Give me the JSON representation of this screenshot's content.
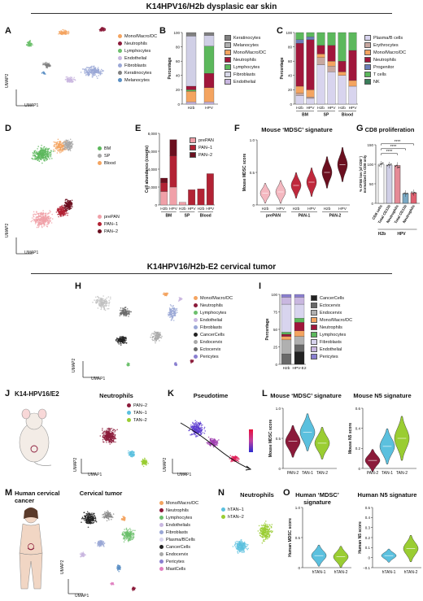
{
  "section1_title": "K14HPV16/H2b dysplasic ear skin",
  "section2_title": "K14HPV16/H2b-E2 cervical tumor",
  "panels": {
    "A": {
      "label": "A",
      "x_axis": "UMAP1",
      "y_axis": "UMAP2",
      "legend": [
        {
          "name": "Mono/Macro/DC",
          "color": "#f4a460"
        },
        {
          "name": "Neutrophils",
          "color": "#8b1a3a"
        },
        {
          "name": "Lymphocytes",
          "color": "#6cbf6c"
        },
        {
          "name": "Endothelial",
          "color": "#c9b7e0"
        },
        {
          "name": "Fibroblasts",
          "color": "#9aa7d6"
        },
        {
          "name": "Keratinocytes",
          "color": "#808080"
        },
        {
          "name": "Melanocytes",
          "color": "#5a8fc4"
        }
      ]
    },
    "B": {
      "label": "B",
      "ylabel": "Percentage",
      "yticks": [
        "0",
        "20",
        "40",
        "60",
        "80",
        "100"
      ],
      "legend": [
        {
          "name": "Keratinocytes",
          "color": "#808080"
        },
        {
          "name": "Melanocytes",
          "color": "#b0b0b0"
        },
        {
          "name": "Mono/Macro/DC",
          "color": "#f4a460"
        },
        {
          "name": "Neutrophils",
          "color": "#a0163b"
        },
        {
          "name": "Lymphocytes",
          "color": "#5cb85c"
        },
        {
          "name": "Fibroblasts",
          "color": "#d8d8e8"
        },
        {
          "name": "Endothelial",
          "color": "#c9b7e0"
        }
      ],
      "categories": [
        "H2b",
        "HPV"
      ],
      "stacks": [
        [
          {
            "v": 3,
            "c": "#c9b7e0"
          },
          {
            "v": 15,
            "c": "#f4a460"
          },
          {
            "v": 2,
            "c": "#5cb85c"
          },
          {
            "v": 5,
            "c": "#a0163b"
          },
          {
            "v": 70,
            "c": "#d0cfe6"
          },
          {
            "v": 5,
            "c": "#808080"
          }
        ],
        [
          {
            "v": 3,
            "c": "#c9b7e0"
          },
          {
            "v": 20,
            "c": "#f4a460"
          },
          {
            "v": 20,
            "c": "#a0163b"
          },
          {
            "v": 38,
            "c": "#5cb85c"
          },
          {
            "v": 15,
            "c": "#d0cfe6"
          },
          {
            "v": 4,
            "c": "#808080"
          }
        ]
      ]
    },
    "C": {
      "label": "C",
      "ylabel": "Percentage",
      "yticks": [
        "0",
        "20",
        "40",
        "60",
        "80",
        "100"
      ],
      "legend": [
        {
          "name": "Plasma/B cells",
          "color": "#d8d4ee"
        },
        {
          "name": "Erythrocytes",
          "color": "#c8a8a0"
        },
        {
          "name": "Mono/Macro/DC",
          "color": "#f4a460"
        },
        {
          "name": "Neutrophils",
          "color": "#a0163b"
        },
        {
          "name": "Progenitor",
          "color": "#6b7fb8"
        },
        {
          "name": "T cells",
          "color": "#5cb85c"
        },
        {
          "name": "NK",
          "color": "#3a7d5a"
        }
      ],
      "categories": [
        "H2b",
        "HPV",
        "H2b",
        "HPV",
        "H2b",
        "HPV"
      ],
      "groups": [
        "BM",
        "SP",
        "Blood"
      ],
      "stacks": [
        [
          {
            "v": 12,
            "c": "#d8d4ee"
          },
          {
            "v": 3,
            "c": "#c8a8a0"
          },
          {
            "v": 10,
            "c": "#f4a460"
          },
          {
            "v": 60,
            "c": "#a0163b"
          },
          {
            "v": 5,
            "c": "#6b7fb8"
          },
          {
            "v": 10,
            "c": "#5cb85c"
          }
        ],
        [
          {
            "v": 8,
            "c": "#d8d4ee"
          },
          {
            "v": 2,
            "c": "#c8a8a0"
          },
          {
            "v": 10,
            "c": "#f4a460"
          },
          {
            "v": 70,
            "c": "#a0163b"
          },
          {
            "v": 4,
            "c": "#6b7fb8"
          },
          {
            "v": 6,
            "c": "#5cb85c"
          }
        ],
        [
          {
            "v": 55,
            "c": "#d8d4ee"
          },
          {
            "v": 10,
            "c": "#c8a8a0"
          },
          {
            "v": 5,
            "c": "#f4a460"
          },
          {
            "v": 12,
            "c": "#a0163b"
          },
          {
            "v": 18,
            "c": "#5cb85c"
          }
        ],
        [
          {
            "v": 45,
            "c": "#d8d4ee"
          },
          {
            "v": 8,
            "c": "#c8a8a0"
          },
          {
            "v": 7,
            "c": "#f4a460"
          },
          {
            "v": 22,
            "c": "#a0163b"
          },
          {
            "v": 18,
            "c": "#5cb85c"
          }
        ],
        [
          {
            "v": 40,
            "c": "#d8d4ee"
          },
          {
            "v": 5,
            "c": "#f4a460"
          },
          {
            "v": 15,
            "c": "#a0163b"
          },
          {
            "v": 40,
            "c": "#5cb85c"
          }
        ],
        [
          {
            "v": 25,
            "c": "#d8d4ee"
          },
          {
            "v": 8,
            "c": "#f4a460"
          },
          {
            "v": 42,
            "c": "#a0163b"
          },
          {
            "v": 25,
            "c": "#5cb85c"
          }
        ]
      ]
    },
    "D": {
      "label": "D",
      "x_axis": "UMAP1",
      "y_axis": "UMAP2",
      "legend_top": [
        {
          "name": "BM",
          "color": "#5cb85c"
        },
        {
          "name": "SP",
          "color": "#a6a6a6"
        },
        {
          "name": "Blood",
          "color": "#f4a460"
        }
      ],
      "legend_bottom": [
        {
          "name": "prePAN",
          "color": "#f0a0a8"
        },
        {
          "name": "PAN–1",
          "color": "#b22234"
        },
        {
          "name": "PAN–2",
          "color": "#6b0f1f"
        }
      ]
    },
    "E": {
      "label": "E",
      "ylabel": "Cell abundance (counts)",
      "yticks": [
        "0",
        "2,000",
        "4,000",
        "6,000",
        "8,000"
      ],
      "legend": [
        {
          "name": "prePAN",
          "color": "#f0a0a8"
        },
        {
          "name": "PAN–1",
          "color": "#b22234"
        },
        {
          "name": "PAN–2",
          "color": "#6b0f1f"
        }
      ],
      "categories": [
        "H2b",
        "HPV",
        "H2b",
        "HPV",
        "H2b",
        "HPV"
      ],
      "groups": [
        "BM",
        "SP",
        "Blood"
      ],
      "stacks": [
        [
          {
            "v": 1500,
            "c": "#f0a0a8"
          },
          {
            "v": 1000,
            "c": "#b22234"
          },
          {
            "v": 500,
            "c": "#6b0f1f"
          }
        ],
        [
          {
            "v": 2000,
            "c": "#f0a0a8"
          },
          {
            "v": 3500,
            "c": "#b22234"
          },
          {
            "v": 1800,
            "c": "#6b0f1f"
          }
        ],
        [
          {
            "v": 300,
            "c": "#f0a0a8"
          }
        ],
        [
          {
            "v": 1700,
            "c": "#b22234"
          }
        ],
        [
          {
            "v": 1800,
            "c": "#b22234"
          }
        ],
        [
          {
            "v": 3500,
            "c": "#b22234"
          }
        ]
      ]
    },
    "F": {
      "label": "F",
      "title": "Mouse ‘MDSC’ signature",
      "ylabel": "Mouse MDSC score",
      "yticks": [
        "0",
        "0.5",
        "1.0"
      ],
      "categories": [
        "H2b",
        "HPV",
        "H2b",
        "HPV",
        "H2b",
        "HPV"
      ],
      "groups": [
        "prePAN",
        "PAN-1",
        "PAN-2"
      ],
      "medians": [
        0.18,
        0.2,
        0.3,
        0.35,
        0.5,
        0.62
      ],
      "colors": [
        "#f4b8c0",
        "#f4b8c0",
        "#c0283c",
        "#c0283c",
        "#6b0f1f",
        "#6b0f1f"
      ]
    },
    "G": {
      "label": "G",
      "title": "CD8 proliferation",
      "ylabel": "% CFSE low (of CD8⁺) normalized to CD8 only",
      "yticks": [
        "0",
        "50",
        "100",
        "150"
      ],
      "categories": [
        "CD8 cells",
        "Total CD11b",
        "Neutrophils",
        "Total CD11b",
        "Neutrophils"
      ],
      "groups": [
        "H2b",
        "HPV"
      ],
      "values": [
        100,
        98,
        97,
        25,
        27
      ],
      "colors": [
        "#ffffff",
        "#d0cfe6",
        "#e58a96",
        "#7aa9c4",
        "#e06070"
      ],
      "significance": "****"
    },
    "H": {
      "label": "H",
      "x_axis": "UMAP1",
      "y_axis": "UMAP2",
      "legend": [
        {
          "name": "Mono/Macro/DC",
          "color": "#f4a460"
        },
        {
          "name": "Neutrophils",
          "color": "#8b1a3a"
        },
        {
          "name": "Lymphocytes",
          "color": "#6cbf6c"
        },
        {
          "name": "Endothelial",
          "color": "#c9b7e0"
        },
        {
          "name": "Fibroblasts",
          "color": "#9aa7d6"
        },
        {
          "name": "CancerCells",
          "color": "#222222"
        },
        {
          "name": "Endocervix",
          "color": "#a8a8a8"
        },
        {
          "name": "Ectocervix",
          "color": "#6a6a6a"
        },
        {
          "name": "Pericytes",
          "color": "#8a7fd0"
        }
      ]
    },
    "I": {
      "label": "I",
      "ylabel": "Percentage",
      "yticks": [
        "0",
        "25",
        "50",
        "75",
        "100"
      ],
      "legend": [
        {
          "name": "CancerCells",
          "color": "#222222"
        },
        {
          "name": "Ectocervix",
          "color": "#6a6a6a"
        },
        {
          "name": "Endocervix",
          "color": "#b0b0b0"
        },
        {
          "name": "Mono/Macro/DC",
          "color": "#f4a460"
        },
        {
          "name": "Neutrophils",
          "color": "#a0163b"
        },
        {
          "name": "Lymphocytes",
          "color": "#5cb85c"
        },
        {
          "name": "Fibroblasts",
          "color": "#d8d4ee"
        },
        {
          "name": "Endothelial",
          "color": "#c9b7e0"
        },
        {
          "name": "Pericytes",
          "color": "#8a7fd0"
        }
      ],
      "categories": [
        "H2b",
        "HPV-E2"
      ],
      "stacks": [
        [
          {
            "v": 15,
            "c": "#6a6a6a"
          },
          {
            "v": 20,
            "c": "#b0b0b0"
          },
          {
            "v": 5,
            "c": "#f4a460"
          },
          {
            "v": 3,
            "c": "#a0163b"
          },
          {
            "v": 3,
            "c": "#5cb85c"
          },
          {
            "v": 40,
            "c": "#d8d4ee"
          },
          {
            "v": 10,
            "c": "#c9b7e0"
          },
          {
            "v": 4,
            "c": "#8a7fd0"
          }
        ],
        [
          {
            "v": 18,
            "c": "#222222"
          },
          {
            "v": 10,
            "c": "#6a6a6a"
          },
          {
            "v": 12,
            "c": "#b0b0b0"
          },
          {
            "v": 8,
            "c": "#f4a460"
          },
          {
            "v": 12,
            "c": "#a0163b"
          },
          {
            "v": 6,
            "c": "#5cb85c"
          },
          {
            "v": 20,
            "c": "#d8d4ee"
          },
          {
            "v": 10,
            "c": "#c9b7e0"
          },
          {
            "v": 4,
            "c": "#8a7fd0"
          }
        ]
      ]
    },
    "J": {
      "label": "J",
      "model": "K14-HPV16/E2",
      "title": "Neutrophils",
      "x_axis": "UMAP1",
      "y_axis": "UMAP2",
      "legend": [
        {
          "name": "PAN–2",
          "color": "#8b1a3a"
        },
        {
          "name": "TAN–1",
          "color": "#5bc0de"
        },
        {
          "name": "TAN–2",
          "color": "#9acd32"
        }
      ]
    },
    "K": {
      "label": "K",
      "title": "Pseudotime",
      "x_axis": "UMAP1",
      "y_axis": "UMAP2"
    },
    "L": {
      "label": "L",
      "title1": "Mouse ‘MDSC’ signature",
      "title2": "Mouse N5 signature",
      "ylabel1": "Mouse MDSC score",
      "ylabel2": "Mouse N5 score",
      "yticks1": [
        "0",
        "0.5",
        "1.0"
      ],
      "yticks2": [
        "0",
        "0.2",
        "0.4",
        "0.6"
      ],
      "categories": [
        "PAN-2",
        "TAN-1",
        "TAN-2"
      ],
      "colors": [
        "#8b1a3a",
        "#5bc0de",
        "#9acd32"
      ]
    },
    "M": {
      "label": "M",
      "title": "Human cervical cancer",
      "subtitle": "Cervical tumor",
      "x_axis": "UMAP1",
      "y_axis": "UMAP2",
      "legend": [
        {
          "name": "Mono/Macro/DC",
          "color": "#f4a460"
        },
        {
          "name": "Neutrophils",
          "color": "#8b1a3a"
        },
        {
          "name": "Lymphocytes",
          "color": "#6cbf6c"
        },
        {
          "name": "Endothelials",
          "color": "#c9b7e0"
        },
        {
          "name": "Fibroblasts",
          "color": "#9aa7d6"
        },
        {
          "name": "Plasma/BCells",
          "color": "#d8d4ee"
        },
        {
          "name": "CancerCells",
          "color": "#222222"
        },
        {
          "name": "Endocervix",
          "color": "#a8a8a8"
        },
        {
          "name": "Pericytes",
          "color": "#8a7fd0"
        },
        {
          "name": "MastCells",
          "color": "#e080c0"
        }
      ]
    },
    "N": {
      "label": "N",
      "title": "Neutrophils",
      "legend": [
        {
          "name": "hTAN–1",
          "color": "#5bc0de"
        },
        {
          "name": "hTAN–2",
          "color": "#9acd32"
        }
      ]
    },
    "O": {
      "label": "O",
      "title1": "Human ‘MDSC’ signature",
      "title2": "Human N5 signature",
      "ylabel1": "Human MDSC score",
      "ylabel2": "Human N5 score",
      "yticks1": [
        "0",
        "0.5",
        "1.0"
      ],
      "yticks2": [
        "−0.1",
        "0",
        "0.1",
        "0.2",
        "0.3",
        "0.4",
        "0.5"
      ],
      "categories": [
        "hTAN-1",
        "hTAN-2"
      ],
      "colors": [
        "#5bc0de",
        "#9acd32"
      ]
    }
  }
}
